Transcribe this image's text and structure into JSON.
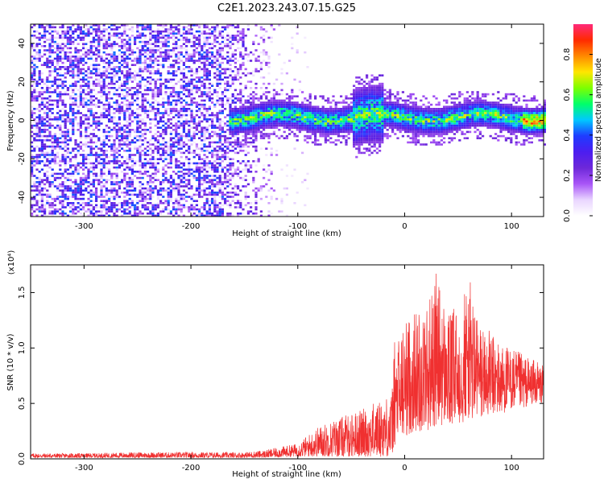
{
  "title": "C2E1.2023.243.07.15.G25",
  "chart_data": [
    {
      "type": "heatmap",
      "xlabel": "Height of straight line (km)",
      "ylabel": "Frequency (Hz)",
      "xlim": [
        -350,
        130
      ],
      "ylim": [
        -50,
        50
      ],
      "xticks": [
        -300,
        -200,
        -100,
        0,
        100
      ],
      "xtick_labels": [
        "-300",
        "-200",
        "-100",
        "0",
        "100"
      ],
      "yticks": [
        -40,
        -20,
        0,
        20,
        40
      ],
      "ytick_labels": [
        "-40",
        "-20",
        "0",
        "20",
        "40"
      ],
      "colorbar": {
        "label": "Normalized spectral amplitude",
        "range": [
          0,
          0.95
        ],
        "ticks": [
          0.0,
          0.2,
          0.4,
          0.6,
          0.8
        ],
        "tick_labels": [
          "0.0",
          "0.2",
          "0.4",
          "0.6",
          "0.8"
        ],
        "colormap": [
          "#ffffff",
          "#e9d5ff",
          "#a855f7",
          "#6d28d9",
          "#4c1df0",
          "#1e3cff",
          "#00c8ff",
          "#00ff6a",
          "#7dff00",
          "#ffe600",
          "#ff8a00",
          "#ff2a00",
          "#ff2a7a"
        ]
      },
      "bands": [
        {
          "x": [
            -350,
            -120
          ],
          "freq_center": 0,
          "freq_halfwidth": 50,
          "intensity": 0.22,
          "note": "diffuse purple noise"
        },
        {
          "x": [
            -165,
            130
          ],
          "freq_center": 2,
          "freq_halfwidth": 7,
          "intensity": 0.45,
          "note": "concentrated signal near 0 Hz"
        }
      ]
    },
    {
      "type": "line",
      "xlabel": "Height of straight line (km)",
      "ylabel": "SNR (10 * v/v)",
      "y_multiplier": "(x10⁴)",
      "xlim": [
        -350,
        130
      ],
      "ylim": [
        0,
        1.75
      ],
      "xticks": [
        -300,
        -200,
        -100,
        0,
        100
      ],
      "xtick_labels": [
        "-300",
        "-200",
        "-100",
        "0",
        "100"
      ],
      "yticks": [
        0.0,
        0.5,
        1.0,
        1.5
      ],
      "ytick_labels": [
        "0.0",
        "0.5",
        "1.0",
        "1.5"
      ],
      "color": "#f03030",
      "envelope_x": [
        -350,
        -300,
        -250,
        -200,
        -150,
        -130,
        -100,
        -80,
        -60,
        -40,
        -20,
        -12,
        -10,
        0,
        10,
        20,
        30,
        40,
        50,
        60,
        70,
        80,
        90,
        100,
        110,
        120,
        130
      ],
      "envelope_upper": [
        0.05,
        0.05,
        0.06,
        0.06,
        0.06,
        0.08,
        0.14,
        0.3,
        0.38,
        0.45,
        0.55,
        0.6,
        1.05,
        1.25,
        1.35,
        1.4,
        1.7,
        1.3,
        1.4,
        1.65,
        1.25,
        1.15,
        1.05,
        1.0,
        0.95,
        0.9,
        0.85
      ],
      "envelope_lower": [
        0.01,
        0.01,
        0.01,
        0.01,
        0.01,
        0.01,
        0.02,
        0.02,
        0.02,
        0.02,
        0.02,
        0.02,
        0.1,
        0.2,
        0.25,
        0.25,
        0.3,
        0.3,
        0.3,
        0.35,
        0.35,
        0.4,
        0.4,
        0.45,
        0.45,
        0.5,
        0.5
      ]
    }
  ]
}
